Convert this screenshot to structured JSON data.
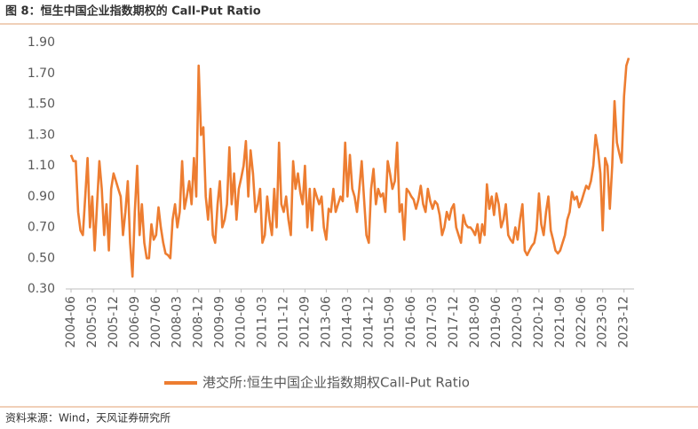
{
  "chart_data": {
    "type": "line",
    "title": "图 8：恒生中国企业指数期权的 Call-Put Ratio",
    "source": "资料来源：Wind，天风证券研究所",
    "categories": [
      "2004-06",
      null,
      null,
      null,
      null,
      null,
      null,
      null,
      null,
      "2005-03",
      null,
      null,
      null,
      null,
      null,
      null,
      null,
      null,
      "2005-12",
      null,
      null,
      null,
      null,
      null,
      null,
      null,
      null,
      "2006-09",
      null,
      null,
      null,
      null,
      null,
      null,
      null,
      null,
      "2007-06",
      null,
      null,
      null,
      null,
      null,
      null,
      null,
      null,
      "2008-03",
      null,
      null,
      null,
      null,
      null,
      null,
      null,
      null,
      "2008-12",
      null,
      null,
      null,
      null,
      null,
      null,
      null,
      null,
      "2009-09",
      null,
      null,
      null,
      null,
      null,
      null,
      null,
      null,
      "2010-06",
      null,
      null,
      null,
      null,
      null,
      null,
      null,
      null,
      "2011-03",
      null,
      null,
      null,
      null,
      null,
      null,
      null,
      null,
      "2011-12",
      null,
      null,
      null,
      null,
      null,
      null,
      null,
      null,
      "2012-09",
      null,
      null,
      null,
      null,
      null,
      null,
      null,
      null,
      "2013-06",
      null,
      null,
      null,
      null,
      null,
      null,
      null,
      null,
      "2014-03",
      null,
      null,
      null,
      null,
      null,
      null,
      null,
      null,
      "2014-12",
      null,
      null,
      null,
      null,
      null,
      null,
      null,
      null,
      "2015-09",
      null,
      null,
      null,
      null,
      null,
      null,
      null,
      null,
      "2016-06",
      null,
      null,
      null,
      null,
      null,
      null,
      null,
      null,
      "2017-03",
      null,
      null,
      null,
      null,
      null,
      null,
      null,
      null,
      "2017-12",
      null,
      null,
      null,
      null,
      null,
      null,
      null,
      null,
      "2018-09",
      null,
      null,
      null,
      null,
      null,
      null,
      null,
      null,
      "2019-06",
      null,
      null,
      null,
      null,
      null,
      null,
      null,
      null,
      "2020-03",
      null,
      null,
      null,
      null,
      null,
      null,
      null,
      null,
      "2020-12",
      null,
      null,
      null,
      null,
      null,
      null,
      null,
      null,
      "2021-09",
      null,
      null,
      null,
      null,
      null,
      null,
      null,
      null,
      "2022-06",
      null,
      null,
      null,
      null,
      null,
      null,
      null,
      null,
      "2023-03",
      null,
      null,
      null,
      null,
      null,
      null,
      null,
      null,
      "2023-12",
      null,
      null
    ],
    "series": [
      {
        "name": "港交所:恒生中国企业指数期权Call-Put Ratio",
        "color": "#ED7D31",
        "values": [
          1.17,
          1.13,
          1.13,
          0.8,
          0.68,
          0.65,
          0.9,
          1.15,
          0.7,
          0.9,
          0.55,
          0.85,
          1.13,
          0.95,
          0.65,
          0.85,
          0.55,
          0.95,
          1.05,
          1.0,
          0.95,
          0.9,
          0.65,
          0.8,
          1.0,
          0.6,
          0.38,
          0.8,
          1.1,
          0.65,
          0.85,
          0.6,
          0.5,
          0.5,
          0.72,
          0.62,
          0.65,
          0.83,
          0.7,
          0.6,
          0.53,
          0.52,
          0.5,
          0.75,
          0.85,
          0.7,
          0.8,
          1.13,
          0.82,
          0.9,
          1.0,
          0.85,
          1.15,
          0.9,
          1.75,
          1.3,
          1.35,
          0.9,
          0.75,
          0.95,
          0.65,
          0.6,
          0.85,
          1.0,
          0.7,
          0.75,
          0.85,
          1.22,
          0.85,
          1.05,
          0.75,
          0.95,
          1.02,
          1.1,
          1.26,
          0.9,
          1.2,
          1.05,
          0.8,
          0.85,
          0.95,
          0.6,
          0.65,
          0.9,
          0.75,
          0.65,
          0.95,
          0.7,
          1.25,
          0.85,
          0.8,
          0.9,
          0.75,
          0.65,
          1.13,
          0.95,
          1.05,
          0.93,
          0.85,
          1.1,
          0.7,
          0.95,
          0.68,
          0.95,
          0.9,
          0.85,
          0.9,
          0.7,
          0.62,
          0.82,
          0.8,
          0.95,
          0.8,
          0.85,
          0.9,
          0.87,
          1.25,
          0.9,
          1.17,
          0.95,
          0.9,
          0.8,
          0.95,
          1.13,
          0.88,
          0.65,
          0.6,
          0.95,
          1.08,
          0.85,
          0.95,
          0.9,
          0.92,
          0.8,
          1.13,
          1.05,
          0.95,
          1.0,
          1.25,
          0.8,
          0.85,
          0.62,
          0.95,
          0.93,
          0.9,
          0.88,
          0.82,
          0.88,
          0.97,
          0.85,
          0.8,
          0.95,
          0.87,
          0.82,
          0.87,
          0.85,
          0.78,
          0.65,
          0.7,
          0.8,
          0.75,
          0.82,
          0.85,
          0.7,
          0.65,
          0.6,
          0.78,
          0.72,
          0.7,
          0.7,
          0.68,
          0.65,
          0.72,
          0.6,
          0.72,
          0.65,
          0.98,
          0.82,
          0.9,
          0.78,
          0.92,
          0.85,
          0.7,
          0.75,
          0.85,
          0.65,
          0.62,
          0.6,
          0.7,
          0.62,
          0.75,
          0.85,
          0.55,
          0.52,
          0.55,
          0.58,
          0.6,
          0.68,
          0.92,
          0.72,
          0.65,
          0.8,
          0.9,
          0.68,
          0.62,
          0.55,
          0.53,
          0.55,
          0.6,
          0.65,
          0.75,
          0.8,
          0.93,
          0.88,
          0.9,
          0.83,
          0.87,
          0.92,
          0.97,
          0.95,
          1.0,
          1.1,
          1.3,
          1.2,
          1.05,
          0.68,
          1.15,
          1.1,
          0.82,
          1.1,
          1.52,
          1.25,
          1.18,
          1.12,
          1.55,
          1.75,
          1.8
        ]
      }
    ],
    "ylim": [
      0.3,
      1.9
    ],
    "yticks": [
      {
        "value": 0.3,
        "label": "0.30"
      },
      {
        "value": 0.5,
        "label": "0.50"
      },
      {
        "value": 0.7,
        "label": "0.70"
      },
      {
        "value": 0.9,
        "label": "0.90"
      },
      {
        "value": 1.1,
        "label": "1.10"
      },
      {
        "value": 1.3,
        "label": "1.30"
      },
      {
        "value": 1.5,
        "label": "1.50"
      },
      {
        "value": 1.7,
        "label": "1.70"
      },
      {
        "value": 1.9,
        "label": "1.90"
      }
    ],
    "grid": false,
    "legend": "bottom"
  }
}
